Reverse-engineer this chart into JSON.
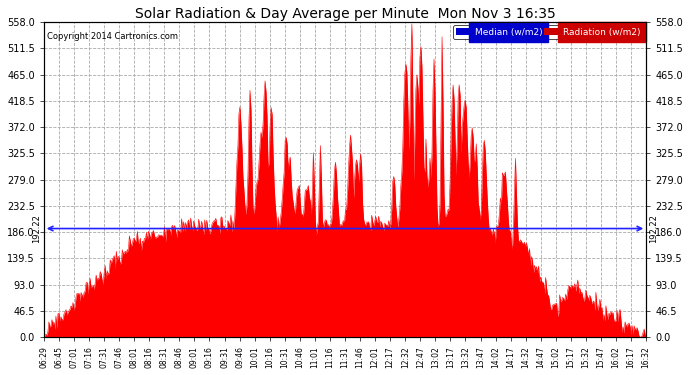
{
  "title": "Solar Radiation & Day Average per Minute  Mon Nov 3 16:35",
  "copyright": "Copyright 2014 Cartronics.com",
  "median_value": 192.22,
  "median_label": "192.22",
  "ylim": [
    0.0,
    558.0
  ],
  "yticks": [
    0.0,
    46.5,
    93.0,
    139.5,
    186.0,
    232.5,
    279.0,
    325.5,
    372.0,
    418.5,
    465.0,
    511.5,
    558.0
  ],
  "radiation_color": "#FF0000",
  "median_color": "#2222FF",
  "bg_color": "#FFFFFF",
  "grid_color": "#AAAAAA",
  "legend_median_bg": "#0000CC",
  "legend_radiation_bg": "#CC0000",
  "x_tick_labels": [
    "06:29",
    "06:45",
    "07:01",
    "07:16",
    "07:31",
    "07:46",
    "08:01",
    "08:16",
    "08:31",
    "08:46",
    "09:01",
    "09:16",
    "09:31",
    "09:46",
    "10:01",
    "10:16",
    "10:31",
    "10:46",
    "11:01",
    "11:16",
    "11:31",
    "11:46",
    "12:01",
    "12:17",
    "12:32",
    "12:47",
    "13:02",
    "13:17",
    "13:32",
    "13:47",
    "14:02",
    "14:17",
    "14:32",
    "14:47",
    "15:02",
    "15:17",
    "15:32",
    "15:47",
    "16:02",
    "16:17",
    "16:32"
  ],
  "n_points": 600
}
